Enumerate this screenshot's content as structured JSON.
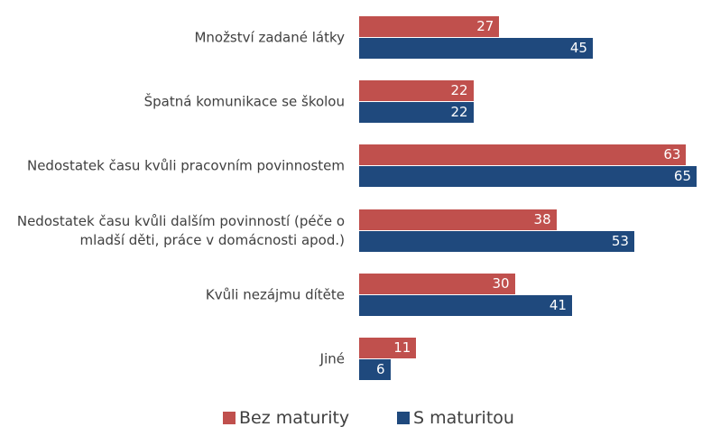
{
  "chart_data": {
    "type": "bar",
    "orientation": "horizontal",
    "categories": [
      "Množství zadané látky",
      "Špatná komunikace se školou",
      "Nedostatek času kvůli pracovním povinnostem",
      "Nedostatek času kvůli dalším povinností (péče o mladší děti, práce v domácnosti apod.)",
      "Kvůli nezájmu dítěte",
      "Jiné"
    ],
    "series": [
      {
        "name": "Bez maturity",
        "color": "#c0504d",
        "values": [
          27,
          22,
          63,
          38,
          30,
          11
        ]
      },
      {
        "name": "S maturitou",
        "color": "#1f497d",
        "values": [
          45,
          22,
          65,
          53,
          41,
          6
        ]
      }
    ],
    "legend": "bottom"
  }
}
